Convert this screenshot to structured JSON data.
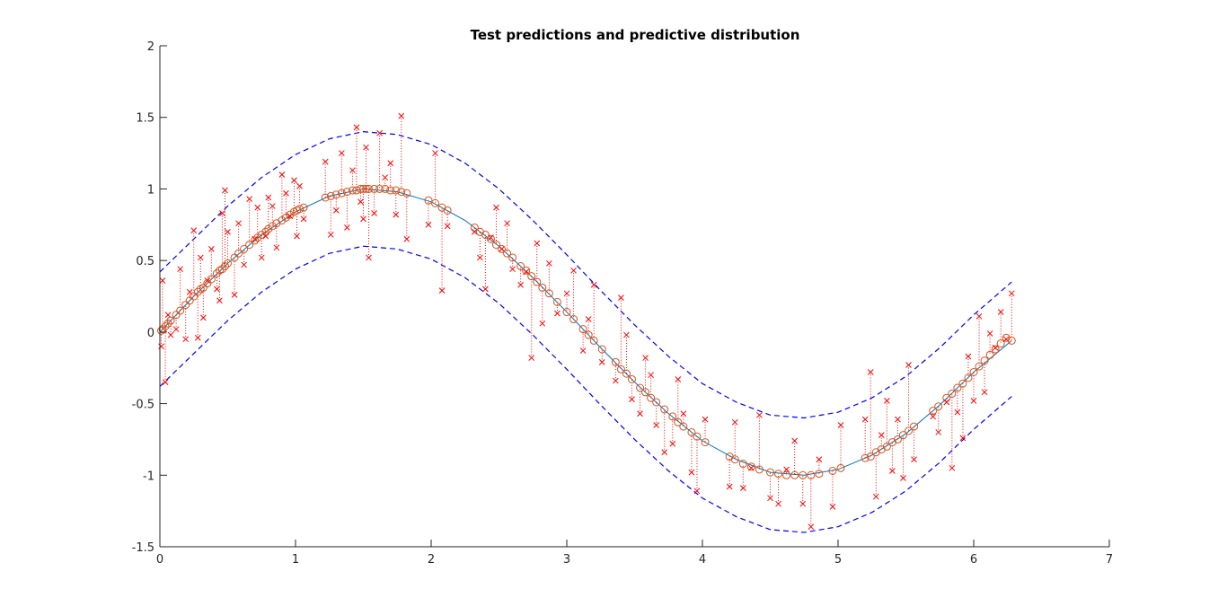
{
  "chart_data": {
    "type": "scatter",
    "title": "Test predictions and predictive distribution",
    "xlabel": "",
    "ylabel": "",
    "xlim": [
      0,
      7
    ],
    "ylim": [
      -1.5,
      2
    ],
    "xticks": [
      0,
      1,
      2,
      3,
      4,
      5,
      6,
      7
    ],
    "xtick_labels": [
      "0",
      "1",
      "2",
      "3",
      "4",
      "5",
      "6",
      "7"
    ],
    "yticks": [
      -1.5,
      -1,
      -0.5,
      0,
      0.5,
      1,
      1.5,
      2
    ],
    "ytick_labels": [
      "-1.5",
      "-1",
      "-0.5",
      "0",
      "0.5",
      "1",
      "1.5",
      "2"
    ],
    "grid": false,
    "legend": "none",
    "colors": {
      "mean_line": "#0072bd",
      "predictions": "#d95319",
      "test_points": "#ff0000",
      "error_lines": "#ff0000",
      "bounds": "#0000ff",
      "axis": "#262626"
    },
    "series": [
      {
        "role": "mean",
        "style": "solid line",
        "x": [
          0.0,
          0.25,
          0.5,
          0.75,
          1.0,
          1.25,
          1.5,
          1.75,
          2.0,
          2.25,
          2.5,
          2.75,
          3.0,
          3.25,
          3.5,
          3.75,
          4.0,
          4.25,
          4.5,
          4.75,
          5.0,
          5.25,
          5.5,
          5.75,
          6.0,
          6.28
        ],
        "y": [
          0.0,
          0.25,
          0.48,
          0.68,
          0.84,
          0.95,
          1.0,
          0.98,
          0.91,
          0.78,
          0.6,
          0.38,
          0.14,
          -0.11,
          -0.35,
          -0.57,
          -0.76,
          -0.89,
          -0.98,
          -1.0,
          -0.96,
          -0.86,
          -0.71,
          -0.51,
          -0.28,
          -0.06
        ]
      },
      {
        "role": "upper bound",
        "style": "dashed line",
        "x": [
          0.0,
          0.25,
          0.5,
          0.75,
          1.0,
          1.25,
          1.5,
          1.75,
          2.0,
          2.25,
          2.5,
          2.75,
          3.0,
          3.25,
          3.5,
          3.75,
          4.0,
          4.25,
          4.5,
          4.75,
          5.0,
          5.25,
          5.5,
          5.75,
          6.0,
          6.28
        ],
        "y": [
          0.42,
          0.65,
          0.88,
          1.08,
          1.24,
          1.35,
          1.4,
          1.38,
          1.31,
          1.18,
          1.0,
          0.78,
          0.54,
          0.29,
          0.05,
          -0.17,
          -0.36,
          -0.49,
          -0.58,
          -0.6,
          -0.56,
          -0.46,
          -0.31,
          -0.11,
          0.12,
          0.35
        ]
      },
      {
        "role": "lower bound",
        "style": "dashed line",
        "x": [
          0.0,
          0.25,
          0.5,
          0.75,
          1.0,
          1.25,
          1.5,
          1.75,
          2.0,
          2.25,
          2.5,
          2.75,
          3.0,
          3.25,
          3.5,
          3.75,
          4.0,
          4.25,
          4.5,
          4.75,
          5.0,
          5.25,
          5.5,
          5.75,
          6.0,
          6.28
        ],
        "y": [
          -0.38,
          -0.15,
          0.08,
          0.28,
          0.44,
          0.55,
          0.6,
          0.58,
          0.51,
          0.38,
          0.2,
          -0.02,
          -0.26,
          -0.51,
          -0.75,
          -0.97,
          -1.16,
          -1.29,
          -1.38,
          -1.4,
          -1.36,
          -1.26,
          -1.11,
          -0.91,
          -0.68,
          -0.45
        ]
      },
      {
        "role": "test targets and predictions",
        "style": "x markers (targets), o markers (predictions), dotted error lines",
        "x": [
          0.01,
          0.02,
          0.04,
          0.06,
          0.08,
          0.12,
          0.15,
          0.19,
          0.22,
          0.25,
          0.28,
          0.3,
          0.32,
          0.35,
          0.38,
          0.42,
          0.44,
          0.46,
          0.48,
          0.5,
          0.55,
          0.58,
          0.62,
          0.66,
          0.7,
          0.72,
          0.75,
          0.78,
          0.8,
          0.83,
          0.86,
          0.9,
          0.93,
          0.96,
          0.99,
          1.01,
          1.03,
          1.06,
          1.22,
          1.26,
          1.3,
          1.34,
          1.38,
          1.42,
          1.45,
          1.48,
          1.5,
          1.52,
          1.54,
          1.58,
          1.62,
          1.66,
          1.7,
          1.74,
          1.78,
          1.82,
          1.98,
          2.03,
          2.08,
          2.12,
          2.32,
          2.36,
          2.4,
          2.44,
          2.48,
          2.52,
          2.56,
          2.6,
          2.66,
          2.7,
          2.74,
          2.78,
          2.82,
          2.87,
          2.93,
          3.0,
          3.05,
          3.12,
          3.16,
          3.2,
          3.26,
          3.36,
          3.4,
          3.44,
          3.48,
          3.54,
          3.58,
          3.62,
          3.66,
          3.72,
          3.78,
          3.82,
          3.86,
          3.92,
          3.96,
          4.02,
          4.2,
          4.24,
          4.3,
          4.36,
          4.42,
          4.5,
          4.56,
          4.62,
          4.68,
          4.74,
          4.8,
          4.86,
          4.96,
          5.02,
          5.2,
          5.24,
          5.28,
          5.32,
          5.36,
          5.4,
          5.44,
          5.48,
          5.52,
          5.56,
          5.7,
          5.74,
          5.8,
          5.84,
          5.88,
          5.92,
          5.96,
          6.0,
          6.04,
          6.08,
          6.12,
          6.16,
          6.2,
          6.24,
          6.28
        ],
        "y_target": [
          -0.1,
          0.36,
          -0.35,
          0.12,
          -0.02,
          0.02,
          0.44,
          -0.05,
          0.28,
          0.71,
          -0.04,
          0.52,
          0.1,
          0.36,
          0.58,
          0.3,
          0.22,
          0.83,
          0.99,
          0.7,
          0.26,
          0.76,
          0.47,
          0.93,
          0.65,
          0.87,
          0.52,
          0.67,
          0.94,
          0.88,
          0.59,
          1.1,
          0.97,
          0.81,
          1.06,
          0.67,
          1.02,
          0.79,
          1.19,
          0.68,
          0.85,
          1.25,
          0.73,
          1.13,
          1.43,
          0.91,
          0.79,
          1.29,
          0.52,
          0.83,
          1.39,
          1.08,
          1.18,
          0.82,
          1.51,
          0.65,
          0.75,
          1.25,
          0.29,
          0.74,
          0.7,
          0.52,
          0.3,
          0.66,
          0.87,
          0.58,
          0.76,
          0.44,
          0.33,
          0.42,
          -0.18,
          0.62,
          0.06,
          0.48,
          0.13,
          0.27,
          0.43,
          -0.13,
          0.09,
          0.33,
          -0.21,
          -0.34,
          0.24,
          -0.02,
          -0.47,
          -0.57,
          -0.18,
          -0.3,
          -0.65,
          -0.84,
          -0.78,
          -0.33,
          -0.57,
          -0.98,
          -1.11,
          -0.61,
          -1.08,
          -0.63,
          -1.09,
          -0.95,
          -0.58,
          -1.16,
          -1.2,
          -0.96,
          -0.76,
          -1.2,
          -1.36,
          -0.89,
          -1.22,
          -0.65,
          -0.61,
          -0.28,
          -1.15,
          -0.72,
          -0.48,
          -0.97,
          -0.61,
          -1.02,
          -0.23,
          -0.89,
          -0.59,
          -0.7,
          -0.49,
          -0.95,
          -0.56,
          -0.74,
          -0.17,
          -0.48,
          0.11,
          -0.42,
          -0.01,
          -0.11,
          0.14,
          -0.05,
          0.27
        ],
        "y_pred": [
          0.01,
          0.02,
          0.04,
          0.06,
          0.08,
          0.12,
          0.15,
          0.19,
          0.22,
          0.25,
          0.28,
          0.3,
          0.31,
          0.34,
          0.37,
          0.41,
          0.43,
          0.44,
          0.46,
          0.48,
          0.52,
          0.55,
          0.58,
          0.61,
          0.64,
          0.66,
          0.68,
          0.7,
          0.72,
          0.74,
          0.76,
          0.78,
          0.8,
          0.82,
          0.84,
          0.85,
          0.86,
          0.87,
          0.94,
          0.95,
          0.96,
          0.97,
          0.98,
          0.99,
          0.99,
          1.0,
          1.0,
          1.0,
          1.0,
          1.0,
          1.0,
          1.0,
          0.99,
          0.99,
          0.98,
          0.97,
          0.92,
          0.9,
          0.87,
          0.85,
          0.73,
          0.7,
          0.68,
          0.65,
          0.61,
          0.58,
          0.55,
          0.52,
          0.46,
          0.43,
          0.39,
          0.35,
          0.31,
          0.27,
          0.21,
          0.14,
          0.09,
          0.02,
          -0.02,
          -0.06,
          -0.12,
          -0.21,
          -0.26,
          -0.29,
          -0.33,
          -0.39,
          -0.42,
          -0.46,
          -0.49,
          -0.54,
          -0.59,
          -0.63,
          -0.66,
          -0.7,
          -0.73,
          -0.77,
          -0.87,
          -0.89,
          -0.92,
          -0.94,
          -0.96,
          -0.98,
          -0.99,
          -1.0,
          -1.0,
          -1.0,
          -1.0,
          -0.99,
          -0.97,
          -0.95,
          -0.88,
          -0.87,
          -0.84,
          -0.82,
          -0.8,
          -0.77,
          -0.75,
          -0.72,
          -0.69,
          -0.66,
          -0.55,
          -0.52,
          -0.46,
          -0.43,
          -0.39,
          -0.36,
          -0.32,
          -0.28,
          -0.24,
          -0.2,
          -0.16,
          -0.12,
          -0.08,
          -0.04,
          -0.06
        ]
      }
    ]
  }
}
